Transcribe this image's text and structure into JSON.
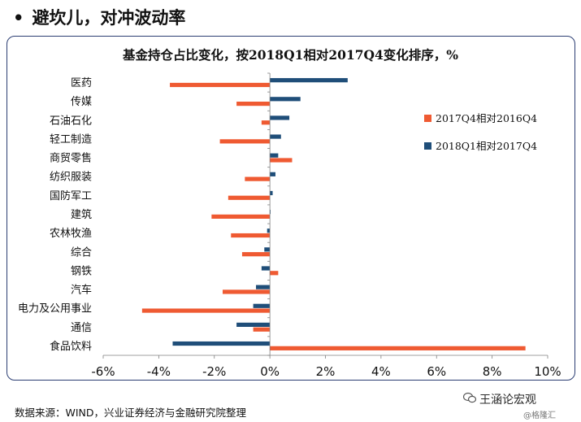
{
  "page": {
    "bullet": "•",
    "heading": "避坎儿，对冲波动率",
    "source_note": "数据来源：WIND，兴业证券经济与金融研究院整理",
    "watermark_main": "王涵论宏观",
    "watermark_sub": "@格隆汇"
  },
  "colors": {
    "series_2017q4": "#ef5a32",
    "series_2018q1": "#1f4e79",
    "frame": "#2c3e73"
  },
  "chart_data": {
    "type": "bar",
    "orientation": "horizontal",
    "stacked": true,
    "title": "基金持仓占比变化，按2018Q1相对2017Q4变化排序，%",
    "categories": [
      "医药",
      "传媒",
      "石油石化",
      "轻工制造",
      "商贸零售",
      "纺织服装",
      "国防军工",
      "建筑",
      "农林牧渔",
      "综合",
      "钢铁",
      "汽车",
      "电力及公用事业",
      "通信",
      "食品饮料"
    ],
    "series": [
      {
        "name": "2017Q4相对2016Q4",
        "values": [
          -3.6,
          -1.2,
          -0.3,
          -1.8,
          0.8,
          -0.9,
          -1.5,
          -2.1,
          -1.4,
          -1.0,
          0.3,
          -1.7,
          -4.6,
          -0.6,
          9.2
        ]
      },
      {
        "name": "2018Q1相对2017Q4",
        "values": [
          2.8,
          1.1,
          0.7,
          0.4,
          0.3,
          0.2,
          0.1,
          0.0,
          -0.1,
          -0.2,
          -0.3,
          -0.5,
          -0.6,
          -1.2,
          -3.5
        ]
      }
    ],
    "x_ticks": [
      "-6%",
      "-4%",
      "-2%",
      "0%",
      "2%",
      "4%",
      "6%",
      "8%",
      "10%"
    ],
    "xlim": [
      -6,
      10
    ],
    "legend_position": "right",
    "grid": false
  }
}
